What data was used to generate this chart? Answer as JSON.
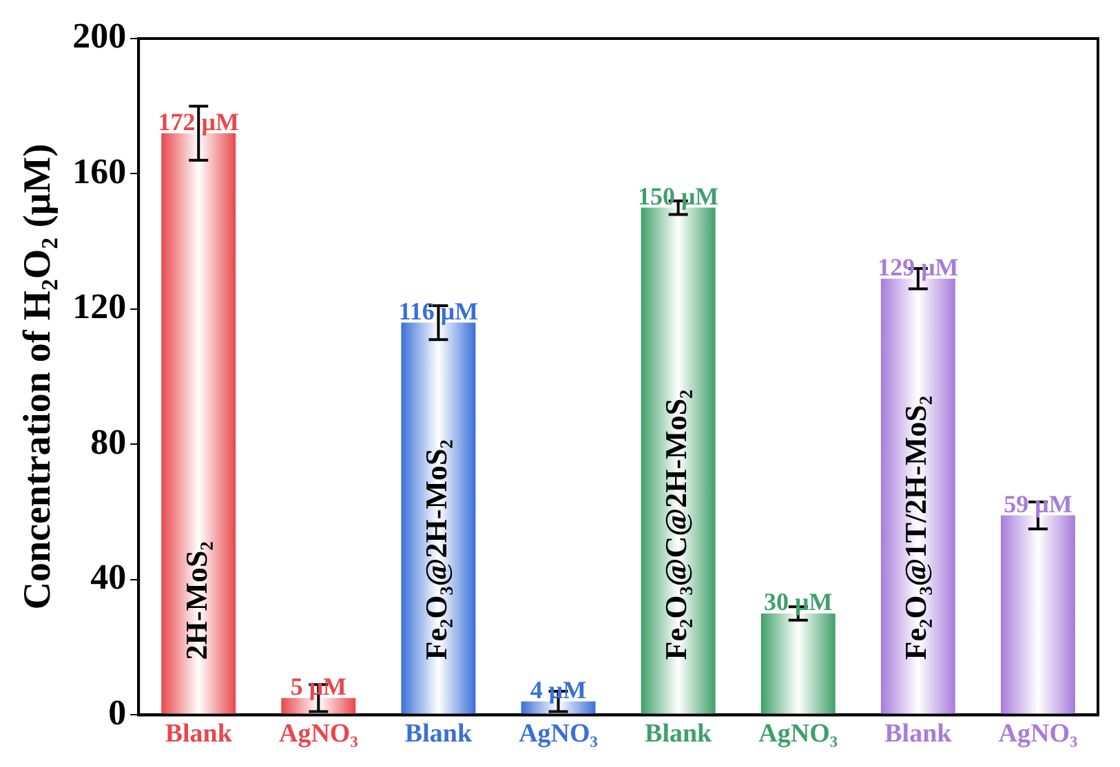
{
  "chart_data": {
    "type": "bar",
    "categories": [
      "Blank",
      "AgNO₃",
      "Blank",
      "AgNO₃",
      "Blank",
      "AgNO₃",
      "Blank",
      "AgNO₃"
    ],
    "values": [
      172,
      5,
      116,
      4,
      150,
      30,
      129,
      59
    ],
    "errors": [
      8,
      4,
      5,
      3,
      2,
      2,
      3,
      4
    ],
    "colors": [
      "#e8474c",
      "#e8474c",
      "#3a6fd8",
      "#3a6fd8",
      "#3fa06a",
      "#3fa06a",
      "#a77bdb",
      "#a77bdb"
    ],
    "value_labels": [
      "172 μM",
      "5 μM",
      "116 μM",
      "4 μM",
      "150 μM",
      "30 μM",
      "129 μM",
      "59 μM"
    ],
    "annotations": [
      "2H-MoS₂",
      "Fe₂O₃@2H-MoS₂",
      "Fe₂O₃@C@2H-MoS₂",
      "Fe₂O₃@1T/2H-MoS₂"
    ],
    "ylabel": "Concentration of H₂O₂ (μM)",
    "ylim": [
      0,
      200
    ],
    "yticks": [
      0,
      40,
      80,
      120,
      160,
      200
    ],
    "grid": false,
    "legend": false
  }
}
